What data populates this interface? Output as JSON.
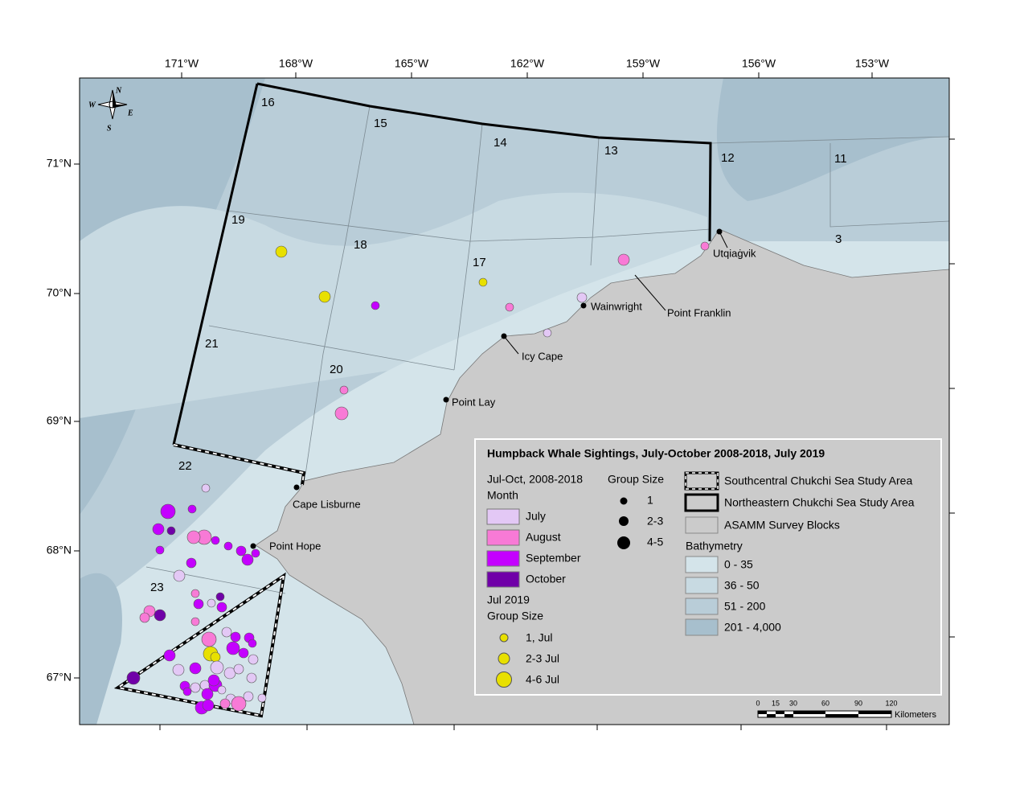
{
  "map": {
    "top_axis": [
      "171°W",
      "168°W",
      "165°W",
      "162°W",
      "159°W",
      "156°W",
      "153°W"
    ],
    "left_axis": [
      "71°N",
      "70°N",
      "69°N",
      "68°N",
      "67°N"
    ],
    "compass": [
      "N",
      "E",
      "S",
      "W"
    ],
    "blocks": [
      "16",
      "15",
      "14",
      "13",
      "12",
      "11",
      "3",
      "19",
      "18",
      "17",
      "21",
      "20",
      "22",
      "23"
    ],
    "places": [
      "Utqiaġvik",
      "Point Franklin",
      "Wainwright",
      "Icy Cape",
      "Point Lay",
      "Cape Lisburne",
      "Point Hope"
    ],
    "legend": {
      "title": "Humpback Whale Sightings, July-October 2008-2018, July 2019",
      "month_heading": [
        "Jul-Oct, 2008-2018",
        "Month"
      ],
      "months": [
        "July",
        "August",
        "September",
        "October"
      ],
      "jul2019_heading": [
        "Jul 2019",
        "Group Size"
      ],
      "jul2019_sizes": [
        "1, Jul",
        "2-3 Jul",
        "4-6 Jul"
      ],
      "group_size_title": "Group Size",
      "group_sizes": [
        "1",
        "2-3",
        "4-5"
      ],
      "areas": [
        "Southcentral Chukchi Sea Study Area",
        "Northeastern Chukchi Sea Study Area",
        "ASAMM Survey Blocks"
      ],
      "bathymetry_title": "Bathymetry",
      "depths": [
        "0 - 35",
        "36 - 50",
        "51 - 200",
        "201 - 4,000"
      ]
    },
    "scale": {
      "ticks": [
        "0",
        "15",
        "30",
        "60",
        "90",
        "120"
      ],
      "unit": "Kilometers"
    }
  }
}
